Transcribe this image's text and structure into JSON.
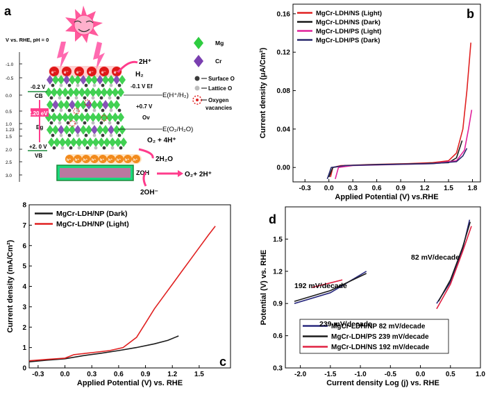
{
  "panel_letters": {
    "a": "a",
    "b": "b",
    "c": "c",
    "d": "d"
  },
  "panel_a": {
    "axis_title": "V vs. RHE, pH = 0",
    "axis_ticks": [
      "-1.0",
      "-0.5",
      "0.0",
      "0.5",
      "1.0",
      "1.23",
      "1.5",
      "2.0",
      "2.5",
      "3.0"
    ],
    "cb_potential": "-0.2 V",
    "cb_label": "CB",
    "vb_potential": "+2. 0 V",
    "vb_label": "VB",
    "band_gap": "2.20 eV",
    "eg_label": "Eg",
    "ef_label": "-0.1 V Ef",
    "hydrogen_level": "E(H⁺/H₂)",
    "oxygen_level": "E(O₂/H₂O)",
    "ov_potential": "+0.7 V",
    "ov_label": "Ov",
    "proton": "2H⁺",
    "hydrogen": "H₂",
    "o2_products": "O₂ + 4H⁺",
    "water": "2H₂O",
    "hydroxyl": "2OH⁻",
    "surface_hydroxyl": "ZOH",
    "o2_protons": "O₂+ 2H⁺",
    "electron": "e⁻",
    "hole": "h⁺",
    "legend": [
      {
        "label": "Mg",
        "color": "#2ecc40"
      },
      {
        "label": "Cr",
        "color": "#7a3fb0"
      },
      {
        "label": "Surface O",
        "color": "#3a3a3a"
      },
      {
        "label": "Lattice O",
        "color": "#bdbdbd"
      },
      {
        "label": "Oxygen vacancies",
        "color": "#e02020"
      }
    ]
  },
  "chart_data": [
    {
      "panel": "b",
      "type": "line",
      "xlabel": "Applied Potential (V) vs.RHE",
      "ylabel": "Current density (μA/Cm²)",
      "xlim": [
        -0.45,
        1.9
      ],
      "ylim": [
        -0.015,
        0.17
      ],
      "xticks": [
        -0.3,
        0.0,
        0.3,
        0.6,
        0.9,
        1.2,
        1.5,
        1.8
      ],
      "yticks": [
        0.0,
        0.04,
        0.08,
        0.12,
        0.16
      ],
      "legend_position": "top-left",
      "series": [
        {
          "name": "MgCr-LDH/NS (Light)",
          "color": "#e02020",
          "points": [
            [
              0.02,
              -0.01
            ],
            [
              0.05,
              0.0
            ],
            [
              0.15,
              0.002
            ],
            [
              0.5,
              0.003
            ],
            [
              1.0,
              0.004
            ],
            [
              1.3,
              0.005
            ],
            [
              1.5,
              0.007
            ],
            [
              1.6,
              0.015
            ],
            [
              1.68,
              0.04
            ],
            [
              1.73,
              0.08
            ],
            [
              1.78,
              0.13
            ]
          ]
        },
        {
          "name": "MgCr-LDH/NS (Dark)",
          "color": "#1a1a1a",
          "points": [
            [
              0.0,
              -0.01
            ],
            [
              0.05,
              0.0
            ],
            [
              0.2,
              0.002
            ],
            [
              0.6,
              0.003
            ],
            [
              1.2,
              0.004
            ],
            [
              1.5,
              0.005
            ],
            [
              1.6,
              0.01
            ],
            [
              1.67,
              0.028
            ]
          ]
        },
        {
          "name": "MgCr-LDH/PS (Light)",
          "color": "#e0209a",
          "points": [
            [
              0.08,
              -0.012
            ],
            [
              0.12,
              0.0
            ],
            [
              0.3,
              0.002
            ],
            [
              0.8,
              0.003
            ],
            [
              1.3,
              0.004
            ],
            [
              1.6,
              0.007
            ],
            [
              1.7,
              0.018
            ],
            [
              1.75,
              0.04
            ],
            [
              1.79,
              0.06
            ]
          ]
        },
        {
          "name": "MgCr-LDH/PS (Dark)",
          "color": "#2a2a6e",
          "points": [
            [
              -0.02,
              -0.012
            ],
            [
              0.03,
              0.0
            ],
            [
              0.2,
              0.002
            ],
            [
              0.7,
              0.003
            ],
            [
              1.3,
              0.004
            ],
            [
              1.6,
              0.006
            ],
            [
              1.68,
              0.012
            ],
            [
              1.73,
              0.02
            ]
          ]
        }
      ]
    },
    {
      "panel": "c",
      "type": "line",
      "xlabel": "Applied Potential (V) vs. RHE",
      "ylabel": "Current density (mA/Cm²)",
      "xlim": [
        -0.4,
        1.85
      ],
      "ylim": [
        0,
        8
      ],
      "xticks": [
        -0.3,
        0.0,
        0.3,
        0.6,
        0.9,
        1.2,
        1.5
      ],
      "yticks": [
        0,
        1,
        2,
        3,
        4,
        5,
        6,
        7,
        8
      ],
      "legend_position": "top-left",
      "series": [
        {
          "name": "MgCr-LDH/NP (Dark)",
          "color": "#1a1a1a",
          "points": [
            [
              -0.4,
              0.3
            ],
            [
              -0.2,
              0.38
            ],
            [
              0.0,
              0.45
            ],
            [
              0.2,
              0.6
            ],
            [
              0.4,
              0.72
            ],
            [
              0.6,
              0.85
            ],
            [
              0.8,
              1.0
            ],
            [
              1.0,
              1.18
            ],
            [
              1.15,
              1.35
            ],
            [
              1.27,
              1.57
            ]
          ]
        },
        {
          "name": "MgCr-LDH/NP (Light)",
          "color": "#e02020",
          "points": [
            [
              -0.4,
              0.35
            ],
            [
              -0.2,
              0.42
            ],
            [
              0.0,
              0.48
            ],
            [
              0.1,
              0.65
            ],
            [
              0.3,
              0.75
            ],
            [
              0.5,
              0.85
            ],
            [
              0.65,
              1.0
            ],
            [
              0.8,
              1.5
            ],
            [
              0.9,
              2.2
            ],
            [
              1.0,
              2.9
            ],
            [
              1.1,
              3.5
            ],
            [
              1.2,
              4.1
            ],
            [
              1.3,
              4.7
            ],
            [
              1.4,
              5.3
            ],
            [
              1.5,
              5.9
            ],
            [
              1.6,
              6.5
            ],
            [
              1.68,
              6.95
            ]
          ]
        }
      ]
    },
    {
      "panel": "d",
      "type": "line",
      "xlabel": "Current density Log (j) vs. RHE",
      "ylabel": "Potential (V) vs. RHE",
      "xlim": [
        -2.25,
        1.0
      ],
      "ylim": [
        0.3,
        1.8
      ],
      "xticks": [
        -2.0,
        -1.5,
        -1.0,
        -0.5,
        0.0,
        0.5,
        1.0
      ],
      "yticks": [
        0.3,
        0.6,
        0.9,
        1.2,
        1.5
      ],
      "legend_position": "bottom-center",
      "annotations": [
        "192 mV/decade",
        "239 mV/decade",
        "82 mV/decade"
      ],
      "series": [
        {
          "name": "MgCr-LDH/NP 82 mV/decade",
          "color": "#2a2a7e",
          "points": [
            [
              -2.1,
              0.9
            ],
            [
              -1.5,
              1.0
            ],
            [
              -0.9,
              1.2
            ],
            [
              0.27,
              0.9
            ],
            [
              0.5,
              1.1
            ],
            [
              0.7,
              1.4
            ],
            [
              0.82,
              1.68
            ]
          ]
        },
        {
          "name": "MgCr-LDH/PS 239 mV/decade",
          "color": "#1a1a1a",
          "points": [
            [
              -2.1,
              0.92
            ],
            [
              -1.5,
              1.02
            ],
            [
              -0.9,
              1.18
            ],
            [
              0.3,
              0.92
            ],
            [
              0.5,
              1.12
            ],
            [
              0.7,
              1.42
            ],
            [
              0.83,
              1.66
            ]
          ]
        },
        {
          "name": "MgCr-LDH/NS 192 mV/decade",
          "color": "#e02040",
          "points": [
            [
              -1.8,
              1.05
            ],
            [
              -1.3,
              1.12
            ],
            [
              0.27,
              0.85
            ],
            [
              0.5,
              1.08
            ],
            [
              0.7,
              1.38
            ],
            [
              0.85,
              1.62
            ]
          ]
        }
      ]
    }
  ]
}
